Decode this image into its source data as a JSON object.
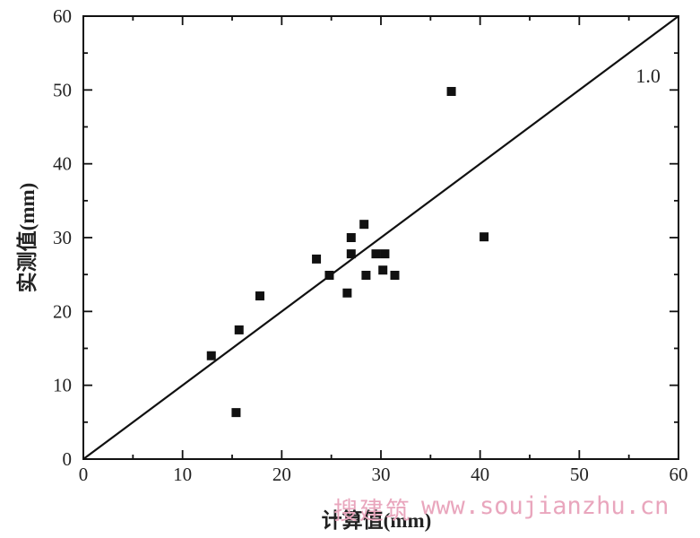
{
  "chart_data": {
    "type": "scatter",
    "title": "",
    "xlabel": "计算值(mm)",
    "ylabel": "实测值(mm)",
    "xlim": [
      0,
      60
    ],
    "ylim": [
      0,
      60
    ],
    "xtick_labels": [
      "0",
      "10",
      "20",
      "30",
      "40",
      "50",
      "60"
    ],
    "ytick_labels": [
      "0",
      "10",
      "20",
      "30",
      "40",
      "50",
      "60"
    ],
    "minor_tick_step": 5,
    "grid": false,
    "legend": "none",
    "points": [
      {
        "x": 12.9,
        "y": 14.0
      },
      {
        "x": 15.4,
        "y": 6.3
      },
      {
        "x": 15.7,
        "y": 17.5
      },
      {
        "x": 17.8,
        "y": 22.1
      },
      {
        "x": 23.5,
        "y": 27.1
      },
      {
        "x": 24.8,
        "y": 24.9
      },
      {
        "x": 26.6,
        "y": 22.5
      },
      {
        "x": 27.0,
        "y": 30.0
      },
      {
        "x": 27.0,
        "y": 27.8
      },
      {
        "x": 28.3,
        "y": 31.8
      },
      {
        "x": 28.5,
        "y": 24.9
      },
      {
        "x": 29.5,
        "y": 27.8
      },
      {
        "x": 30.4,
        "y": 27.8
      },
      {
        "x": 30.2,
        "y": 25.6
      },
      {
        "x": 31.4,
        "y": 24.9
      },
      {
        "x": 37.1,
        "y": 49.8
      },
      {
        "x": 40.4,
        "y": 30.1
      }
    ],
    "reference_line": {
      "label": "1.0",
      "from": [
        0,
        0
      ],
      "to": [
        60,
        60
      ]
    },
    "marker": "square"
  },
  "watermark": {
    "site_name": "搜建筑",
    "url": "www.soujianzhu.cn"
  },
  "colors": {
    "ink": "#111111",
    "watermark": "#e9a6bd"
  }
}
